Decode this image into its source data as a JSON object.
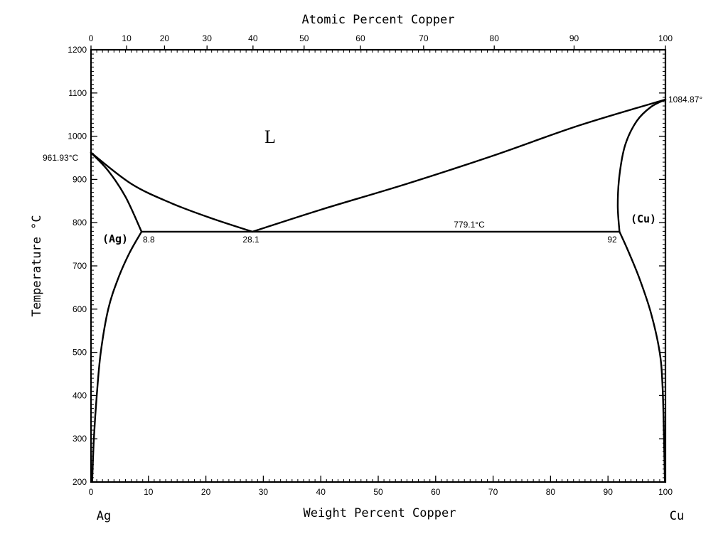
{
  "chart_data": {
    "type": "line",
    "title": "",
    "top_axis_label": "Atomic Percent Copper",
    "xlabel": "Weight Percent Copper",
    "ylabel": "Temperature °C",
    "left_end_label": "Ag",
    "right_end_label": "Cu",
    "xlim": [
      0,
      100
    ],
    "ylim": [
      200,
      1200
    ],
    "x_ticks": [
      0,
      10,
      20,
      30,
      40,
      50,
      60,
      70,
      80,
      90,
      100
    ],
    "y_ticks": [
      200,
      300,
      400,
      500,
      600,
      700,
      800,
      900,
      1000,
      1100,
      1200
    ],
    "top_ticks": [
      {
        "label": "0",
        "wt": 0
      },
      {
        "label": "10",
        "wt": 6.2
      },
      {
        "label": "20",
        "wt": 12.8
      },
      {
        "label": "30",
        "wt": 20.2
      },
      {
        "label": "40",
        "wt": 28.2
      },
      {
        "label": "50",
        "wt": 37.1
      },
      {
        "label": "60",
        "wt": 46.9
      },
      {
        "label": "70",
        "wt": 57.9
      },
      {
        "label": "80",
        "wt": 70.2
      },
      {
        "label": "90",
        "wt": 84.1
      },
      {
        "label": "100",
        "wt": 100
      }
    ],
    "series": [
      {
        "values": [
          [
            0,
            961.93
          ],
          [
            3,
            920
          ],
          [
            6,
            860
          ],
          [
            8.8,
            779.1
          ]
        ]
      },
      {
        "values": [
          [
            0,
            961.93
          ],
          [
            7,
            890
          ],
          [
            14,
            845
          ],
          [
            21,
            810
          ],
          [
            28.1,
            779.1
          ]
        ]
      },
      {
        "values": [
          [
            28.1,
            779.1
          ],
          [
            40,
            830
          ],
          [
            55,
            890
          ],
          [
            70,
            955
          ],
          [
            85,
            1025
          ],
          [
            100,
            1084.87
          ]
        ]
      },
      {
        "values": [
          [
            8.8,
            779.1
          ],
          [
            6.7,
            730
          ],
          [
            4.7,
            670
          ],
          [
            3,
            600
          ],
          [
            1.7,
            500
          ],
          [
            1.0,
            400
          ],
          [
            0.5,
            300
          ],
          [
            0.2,
            200
          ]
        ]
      },
      {
        "values": [
          [
            92,
            779.1
          ],
          [
            93.5,
            735
          ],
          [
            95.5,
            670
          ],
          [
            97.5,
            590
          ],
          [
            99,
            500
          ],
          [
            99.5,
            420
          ],
          [
            99.75,
            300
          ],
          [
            99.9,
            200
          ]
        ]
      },
      {
        "values": [
          [
            92,
            779.1
          ],
          [
            91.7,
            840
          ],
          [
            92,
            910
          ],
          [
            93,
            980
          ],
          [
            95,
            1035
          ],
          [
            97.5,
            1068
          ],
          [
            100,
            1084.87
          ]
        ]
      },
      {
        "values": [
          [
            8.8,
            779.1
          ],
          [
            92,
            779.1
          ]
        ]
      }
    ],
    "annotations": {
      "ag_melting": "961.93°C",
      "cu_melting": "1084.87°",
      "eutectic_temp": "779.1°C",
      "ag_solubility": "8.8",
      "eutectic_comp": "28.1",
      "cu_solubility": "92",
      "liquid_phase": "L",
      "ag_phase": "(Ag)",
      "cu_phase": "(Cu)"
    }
  }
}
